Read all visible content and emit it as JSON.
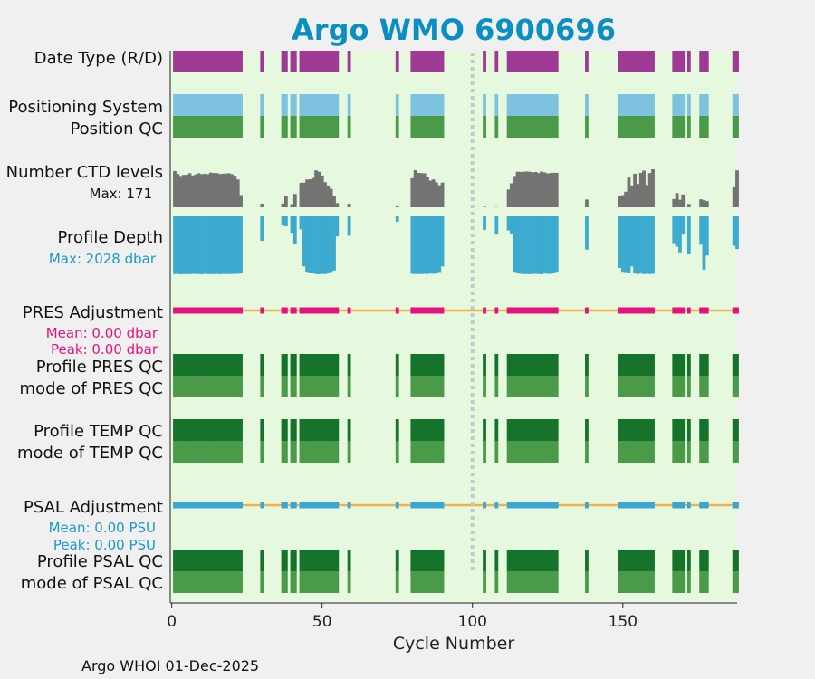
{
  "chart_data": {
    "type": "bar",
    "title": "Argo WMO 6900696",
    "xlabel": "Cycle Number",
    "xlim": [
      -0.5,
      188
    ],
    "xticks": [
      0,
      50,
      100,
      150
    ],
    "xtick_labels": [
      "0",
      "50",
      "100",
      "150"
    ],
    "marker_cycle": 100,
    "cycles": [
      1,
      2,
      3,
      4,
      5,
      6,
      7,
      8,
      9,
      10,
      11,
      12,
      13,
      14,
      15,
      16,
      17,
      18,
      19,
      20,
      21,
      22,
      23,
      30,
      37,
      38,
      40,
      41,
      43,
      44,
      45,
      46,
      47,
      48,
      49,
      50,
      51,
      52,
      53,
      54,
      55,
      59,
      75,
      80,
      81,
      82,
      83,
      84,
      85,
      86,
      87,
      88,
      89,
      90,
      104,
      108,
      112,
      113,
      114,
      115,
      116,
      117,
      118,
      119,
      120,
      121,
      122,
      123,
      124,
      125,
      126,
      127,
      128,
      138,
      149,
      150,
      151,
      152,
      153,
      154,
      155,
      156,
      157,
      158,
      159,
      160,
      167,
      168,
      169,
      170,
      172,
      176,
      177,
      178,
      187,
      188
    ],
    "ctd_levels": [
      163,
      150,
      141,
      146,
      146,
      153,
      143,
      148,
      153,
      149,
      151,
      149,
      156,
      154,
      154,
      150,
      151,
      152,
      153,
      149,
      142,
      125,
      55,
      16,
      17,
      50,
      14,
      60,
      110,
      111,
      125,
      126,
      132,
      166,
      160,
      143,
      113,
      98,
      83,
      51,
      19,
      16,
      7,
      131,
      167,
      155,
      154,
      153,
      135,
      120,
      125,
      112,
      99,
      111,
      2,
      1,
      80,
      108,
      141,
      160,
      159,
      160,
      161,
      160,
      157,
      159,
      154,
      161,
      157,
      152,
      154,
      155,
      155,
      35,
      51,
      55,
      70,
      134,
      98,
      151,
      105,
      155,
      165,
      100,
      154,
      171,
      37,
      64,
      34,
      58,
      15,
      36,
      32,
      28,
      90,
      166
    ],
    "profile_depth": [
      1960,
      1950,
      1965,
      1960,
      1958,
      1962,
      1950,
      1955,
      1960,
      1965,
      1950,
      1958,
      1962,
      1960,
      1955,
      1962,
      1960,
      1955,
      1960,
      1958,
      1950,
      1950,
      1940,
      830,
      310,
      340,
      560,
      930,
      440,
      1700,
      1880,
      1920,
      1930,
      1960,
      1965,
      1950,
      1960,
      1910,
      1880,
      1840,
      680,
      660,
      180,
      1950,
      1960,
      1955,
      1960,
      1950,
      1958,
      1940,
      1950,
      1910,
      1890,
      1700,
      460,
      620,
      480,
      600,
      1880,
      1930,
      1950,
      1960,
      1958,
      1962,
      1955,
      1950,
      1960,
      1962,
      1930,
      1950,
      1950,
      1910,
      1880,
      1130,
      1750,
      1880,
      1895,
      1910,
      1700,
      1940,
      1955,
      1940,
      1960,
      1950,
      1960,
      1950,
      910,
      1030,
      1220,
      620,
      1290,
      960,
      1810,
      1330,
      1000,
      1110
    ],
    "max_ctd_levels": 171,
    "max_depth_dbar": 2028,
    "series": [
      {
        "name": "Date Type (R/D)",
        "color": "#9e3a96"
      },
      {
        "name": "Positioning System",
        "color": "#7dc2df"
      },
      {
        "name": "Position QC",
        "color": "#4a9a49"
      },
      {
        "name": "Number CTD levels",
        "color": "#737373"
      },
      {
        "name": "Profile Depth",
        "color": "#3daad0"
      },
      {
        "name": "PRES Adjustment",
        "color": "#e5127d",
        "line_color": "#f1b04b",
        "mean": 0.0,
        "peak": 0.0,
        "unit": "dbar"
      },
      {
        "name": "Profile PRES QC",
        "color": "#15732b"
      },
      {
        "name": "mode of PRES QC",
        "color": "#4a9a49"
      },
      {
        "name": "Profile TEMP QC",
        "color": "#15732b"
      },
      {
        "name": "mode of TEMP QC",
        "color": "#4a9a49"
      },
      {
        "name": "PSAL Adjustment",
        "color": "#3aa6d2",
        "line_color": "#f1b04b",
        "mean": 0.0,
        "peak": 0.0,
        "unit": "PSU"
      },
      {
        "name": "Profile PSAL QC",
        "color": "#15732b"
      },
      {
        "name": "mode of PSAL QC",
        "color": "#4a9a49"
      }
    ]
  },
  "labels": {
    "date_type": "Date Type (R/D)",
    "positioning_system": "Positioning System",
    "position_qc": "Position QC",
    "ctd_levels": "Number CTD levels",
    "ctd_max": "Max: 171",
    "profile_depth": "Profile Depth",
    "depth_max": "Max: 2028 dbar",
    "pres_adjustment": "PRES Adjustment",
    "pres_mean": "Mean: 0.00 dbar",
    "pres_peak": "Peak: 0.00 dbar",
    "profile_pres_qc": "Profile PRES QC",
    "mode_pres_qc": "mode of PRES QC",
    "profile_temp_qc": "Profile TEMP QC",
    "mode_temp_qc": "mode of TEMP QC",
    "psal_adjustment": "PSAL Adjustment",
    "psal_mean": "Mean: 0.00 PSU",
    "psal_peak": "Peak: 0.00 PSU",
    "profile_psal_qc": "Profile PSAL QC",
    "mode_psal_qc": "mode of PSAL QC"
  },
  "footer": "Argo WHOI 01-Dec-2025",
  "colors": {
    "plot_bg": "#e6f9df",
    "page_bg": "#f0f0f0",
    "title": "#0a8fc0",
    "ctd_max_text": "#111111",
    "depth_max_text": "#1a9ac4",
    "pres_stats_text": "#e5127d",
    "psal_stats_text": "#1a9ac4"
  }
}
